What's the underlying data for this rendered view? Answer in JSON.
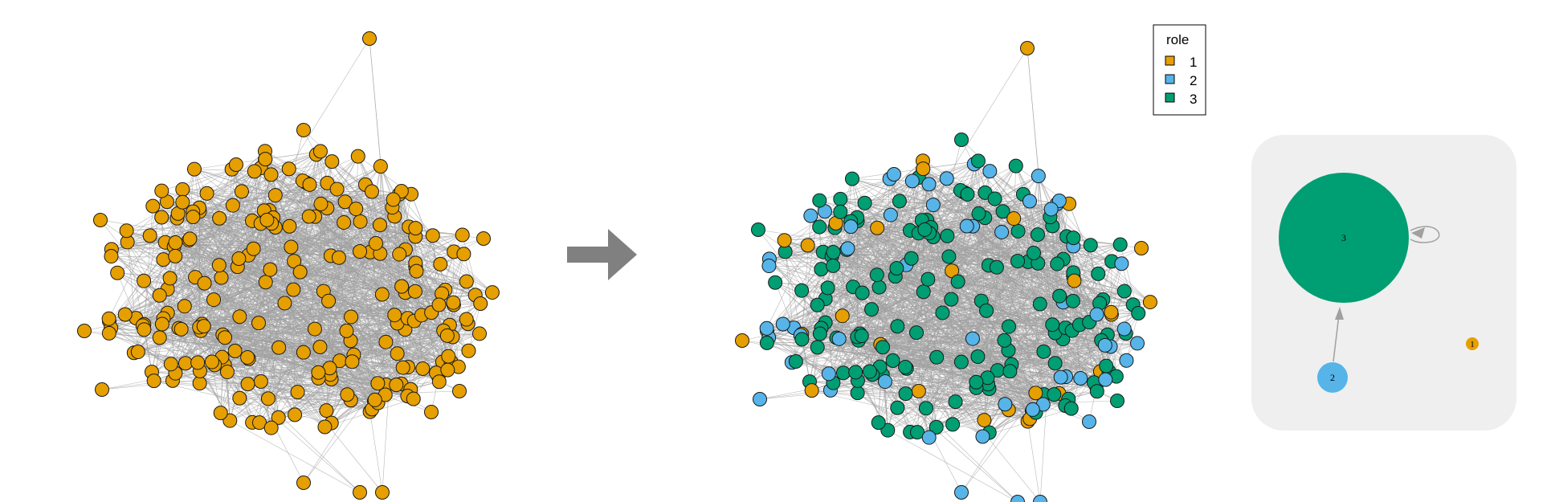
{
  "colors": {
    "role1": "#E69F00",
    "role2": "#56B4E9",
    "role3": "#009E73",
    "edge": "#a0a0a0",
    "node_border": "#1a1a1a",
    "arrow": "#808080",
    "panel_bg": "#efefef"
  },
  "legend": {
    "title": "role",
    "items": [
      {
        "label": "1",
        "role": 1
      },
      {
        "label": "2",
        "role": 2
      },
      {
        "label": "3",
        "role": 3
      }
    ]
  },
  "arrow_icon": "right-arrow-icon",
  "summary_graph": {
    "nodes": [
      {
        "label": "3",
        "role": 3
      },
      {
        "label": "2",
        "role": 2
      },
      {
        "label": "1",
        "role": 1
      }
    ],
    "edges": [
      {
        "from": "2",
        "to": "3"
      },
      {
        "from": "3",
        "to": "3"
      }
    ]
  }
}
